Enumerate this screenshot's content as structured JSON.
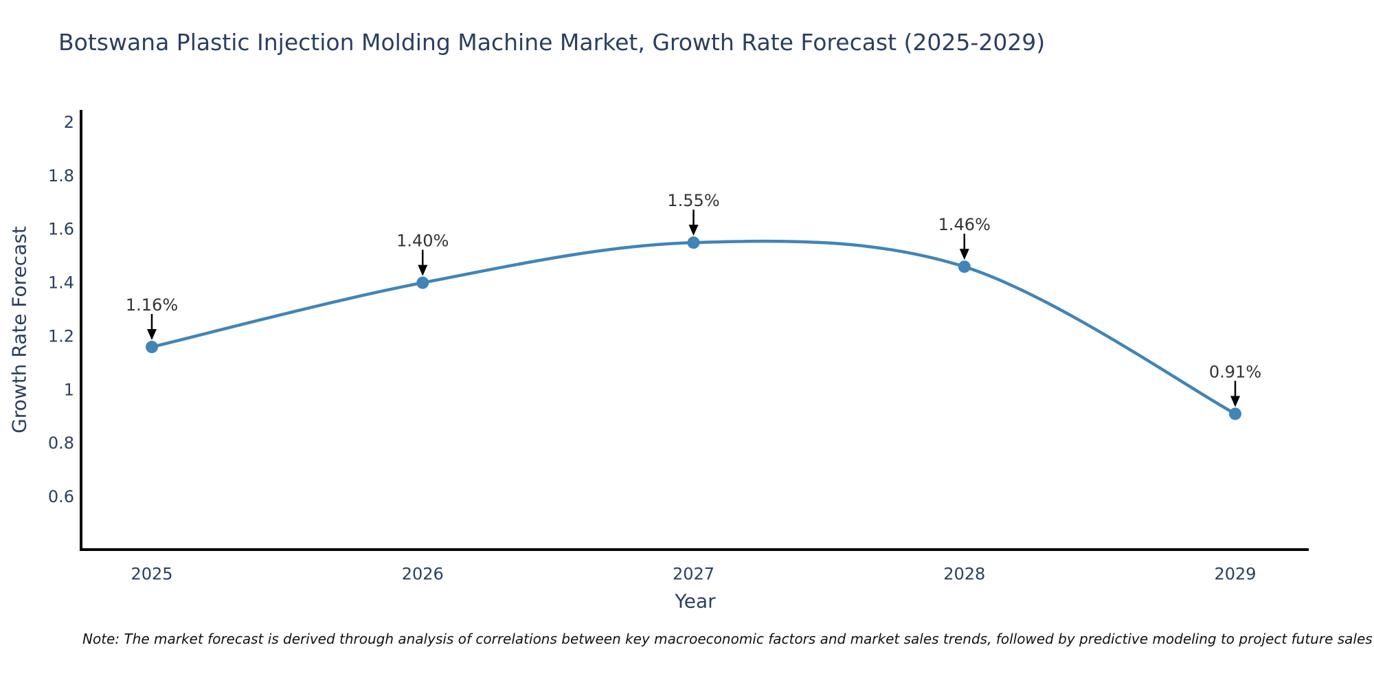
{
  "title": "Botswana Plastic Injection Molding Machine Market, Growth Rate Forecast (2025-2029)",
  "note": "Note: The market forecast is derived through analysis of correlations between key macroeconomic factors and market sales trends, followed by predictive modeling to project future sales",
  "colors": {
    "accent": "#4184b8",
    "title_text": "#2a3f5f",
    "tick_text": "#2a3f5f",
    "axis_line": "#000000",
    "annotation_text": "#333333",
    "arrow": "#000000",
    "note_text": "#111111",
    "background": "#ffffff"
  },
  "chart_data": {
    "type": "line",
    "title": "Botswana Plastic Injection Molding Machine Market, Growth Rate Forecast (2025-2029)",
    "categories": [
      "2025",
      "2026",
      "2027",
      "2028",
      "2029"
    ],
    "x": [
      2025,
      2026,
      2027,
      2028,
      2029
    ],
    "values": [
      1.16,
      1.4,
      1.55,
      1.46,
      0.91
    ],
    "point_labels": [
      "1.16%",
      "1.40%",
      "1.55%",
      "1.46%",
      "0.91%"
    ],
    "xlabel": "Year",
    "ylabel": "Growth Rate Forecast",
    "yticks": [
      "2",
      "1.8",
      "1.6",
      "1.4",
      "1.2",
      "1",
      "0.8",
      "0.6"
    ],
    "ytick_values": [
      2,
      1.8,
      1.6,
      1.4,
      1.2,
      1,
      0.8,
      0.6
    ],
    "ylim": [
      0.4,
      2.05
    ],
    "grid": false,
    "legend": "none",
    "line_shape": "spline",
    "marker": "circle-with-arrow-annotation"
  }
}
